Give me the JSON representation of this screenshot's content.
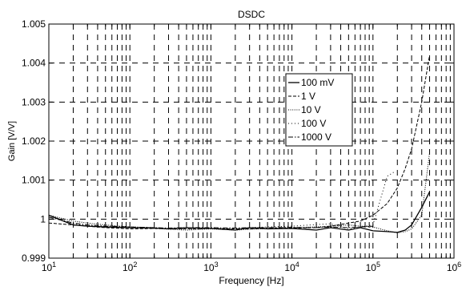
{
  "chart_data": {
    "type": "line",
    "title": "DSDC",
    "xlabel": "Frequency [Hz]",
    "ylabel": "Gain [V/V]",
    "xscale": "log",
    "xlim": [
      10,
      1000000
    ],
    "ylim": [
      0.999,
      1.005
    ],
    "grid": true,
    "legend_position": "upper-right",
    "xticks": [
      {
        "value": 10,
        "base": "10",
        "exp": "1"
      },
      {
        "value": 100,
        "base": "10",
        "exp": "2"
      },
      {
        "value": 1000,
        "base": "10",
        "exp": "3"
      },
      {
        "value": 10000,
        "base": "10",
        "exp": "4"
      },
      {
        "value": 100000,
        "base": "10",
        "exp": "5"
      },
      {
        "value": 1000000,
        "base": "10",
        "exp": "6"
      }
    ],
    "yticks": [
      {
        "value": 0.999,
        "label": "0.999"
      },
      {
        "value": 1.0,
        "label": "1"
      },
      {
        "value": 1.001,
        "label": "1.001"
      },
      {
        "value": 1.002,
        "label": "1.002"
      },
      {
        "value": 1.003,
        "label": "1.003"
      },
      {
        "value": 1.004,
        "label": "1.004"
      },
      {
        "value": 1.005,
        "label": "1.005"
      }
    ],
    "series": [
      {
        "name": "100 mV",
        "style": "solid",
        "x": [
          10,
          20,
          30,
          50,
          100,
          200,
          300,
          500,
          1000,
          2000,
          3000,
          5000,
          10000,
          20000,
          30000,
          50000,
          70000,
          100000,
          150000,
          200000,
          250000,
          300000,
          400000,
          500000
        ],
        "y": [
          1.0001,
          0.99985,
          0.99982,
          0.9998,
          0.99978,
          0.99977,
          0.99975,
          0.99978,
          0.99976,
          0.99972,
          0.99978,
          0.99975,
          0.99976,
          0.99972,
          0.99978,
          0.99972,
          0.99978,
          0.9997,
          0.99968,
          0.99966,
          0.99972,
          0.99985,
          1.0003,
          1.0007
        ]
      },
      {
        "name": "1 V",
        "style": "dashed",
        "x": [
          10,
          20,
          30,
          50,
          100,
          200,
          300,
          500,
          1000,
          2000,
          3000,
          5000,
          10000,
          20000,
          30000,
          50000,
          70000,
          100000,
          150000,
          200000,
          250000,
          300000,
          400000,
          500000
        ],
        "y": [
          0.9999,
          0.99985,
          0.99982,
          0.99978,
          0.99975,
          0.99976,
          0.99975,
          0.99975,
          0.99976,
          0.99975,
          0.99975,
          0.99976,
          0.99977,
          0.99978,
          0.99982,
          0.9999,
          0.99995,
          1.0001,
          1.0004,
          1.0008,
          1.0013,
          1.0018,
          1.003,
          1.0042
        ]
      },
      {
        "name": "10 V",
        "style": "dotted",
        "x": [
          10,
          20,
          30,
          50,
          100,
          200,
          300,
          500,
          1000,
          2000,
          3000,
          5000,
          10000,
          20000,
          30000,
          50000,
          70000,
          100000,
          150000,
          200000,
          250000,
          300000,
          400000,
          500000
        ],
        "y": [
          1.0001,
          0.99995,
          0.9999,
          0.99985,
          0.9998,
          0.99978,
          0.99974,
          0.99972,
          0.99975,
          0.99972,
          0.99974,
          0.99976,
          0.99978,
          0.9998,
          0.99982,
          0.99985,
          0.99982,
          0.9998,
          0.9997,
          0.99965,
          0.99968,
          0.99975,
          1.0001,
          1.0017
        ]
      },
      {
        "name": "100 V",
        "style": "dots",
        "x": [
          10,
          20,
          30,
          50,
          100,
          200,
          300,
          500,
          1000,
          2000,
          3000,
          5000,
          10000,
          20000,
          30000,
          50000,
          70000,
          100000,
          150000,
          180000
        ],
        "y": [
          1.0001,
          0.99988,
          0.99983,
          0.9998,
          0.99978,
          0.99976,
          0.99975,
          0.99975,
          0.99975,
          0.99976,
          0.99978,
          0.9998,
          0.99982,
          0.99986,
          0.99988,
          0.99975,
          0.9998,
          0.99985,
          1.0011,
          1.0012
        ]
      },
      {
        "name": "1000 V",
        "style": "dashdot",
        "x": [
          10,
          20,
          30,
          50,
          100,
          200,
          300,
          500,
          1000,
          2000,
          3000,
          5000,
          10000,
          20000,
          30000,
          50000,
          70000,
          100000
        ],
        "y": [
          1.00005,
          0.9999,
          0.99985,
          0.99982,
          0.9998,
          0.99978,
          0.99977,
          0.99978,
          0.99978,
          0.99977,
          0.99978,
          0.99978,
          0.99979,
          0.99978,
          0.9998,
          0.99978,
          0.9998,
          0.99982
        ]
      }
    ],
    "colors": {
      "background": "#ffffff",
      "axis": "#000000",
      "grid": "#000000",
      "lines": "#000000"
    }
  }
}
